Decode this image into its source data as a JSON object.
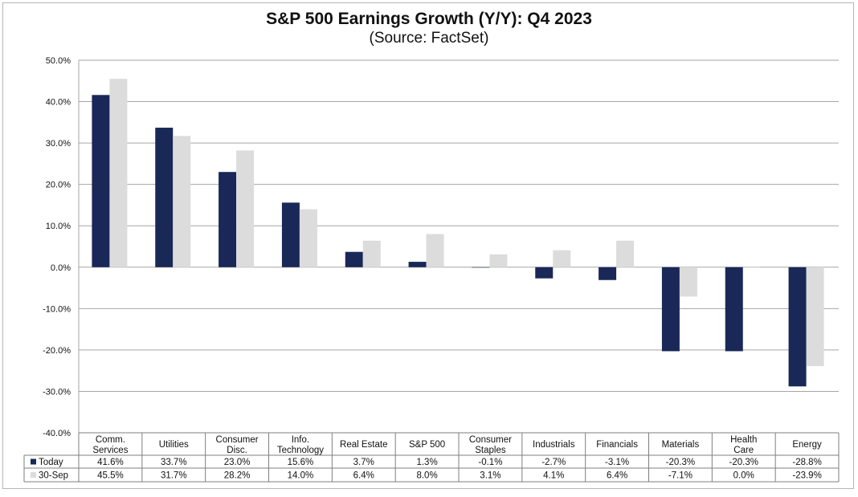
{
  "chart_data": {
    "type": "bar",
    "title": "S&P 500 Earnings Growth (Y/Y): Q4 2023",
    "subtitle": "(Source: FactSet)",
    "categories": [
      [
        "Comm.",
        "Services"
      ],
      [
        "Utilities"
      ],
      [
        "Consumer",
        "Disc."
      ],
      [
        "Info.",
        "Technology"
      ],
      [
        "Real Estate"
      ],
      [
        "S&P 500"
      ],
      [
        "Consumer",
        "Staples"
      ],
      [
        "Industrials"
      ],
      [
        "Financials"
      ],
      [
        "Materials"
      ],
      [
        "Health",
        "Care"
      ],
      [
        "Energy"
      ]
    ],
    "series": [
      {
        "name": "Today",
        "color": "#1a2857",
        "values": [
          41.6,
          33.7,
          23.0,
          15.6,
          3.7,
          1.3,
          -0.1,
          -2.7,
          -3.1,
          -20.3,
          -20.3,
          -28.8
        ],
        "labels": [
          "41.6%",
          "33.7%",
          "23.0%",
          "15.6%",
          "3.7%",
          "1.3%",
          "-0.1%",
          "-2.7%",
          "-3.1%",
          "-20.3%",
          "-20.3%",
          "-28.8%"
        ]
      },
      {
        "name": "30-Sep",
        "color": "#dcdcdc",
        "values": [
          45.5,
          31.7,
          28.2,
          14.0,
          6.4,
          8.0,
          3.1,
          4.1,
          6.4,
          -7.1,
          0.0,
          -23.9
        ],
        "labels": [
          "45.5%",
          "31.7%",
          "28.2%",
          "14.0%",
          "6.4%",
          "8.0%",
          "3.1%",
          "4.1%",
          "6.4%",
          "-7.1%",
          "0.0%",
          "-23.9%"
        ]
      }
    ],
    "ylim": [
      -40,
      50
    ],
    "yticks": [
      "50.0%",
      "40.0%",
      "30.0%",
      "20.0%",
      "10.0%",
      "0.0%",
      "-10.0%",
      "-20.0%",
      "-30.0%",
      "-40.0%"
    ],
    "grid": true,
    "legend": "data-table"
  }
}
